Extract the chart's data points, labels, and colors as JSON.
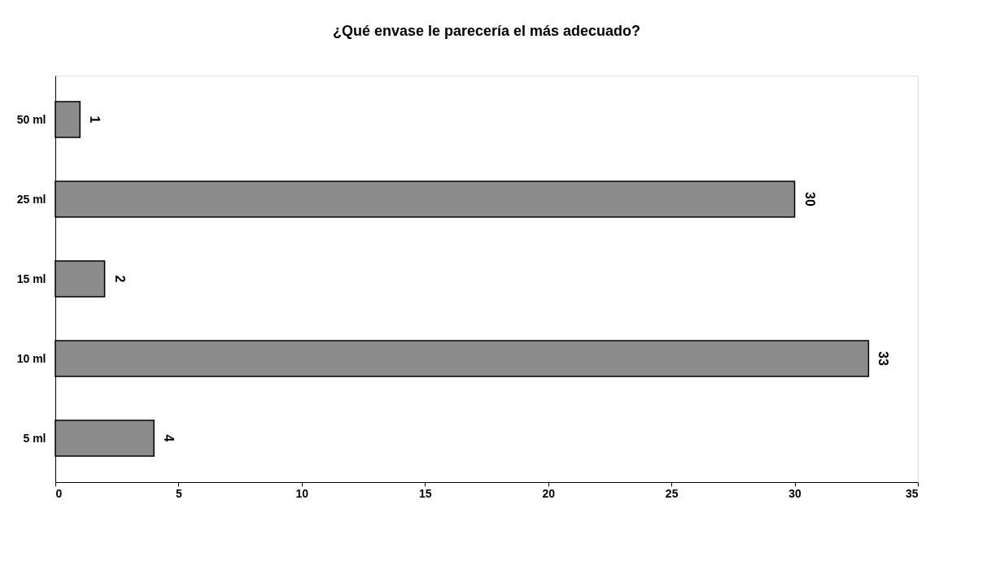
{
  "chart_data": {
    "type": "bar",
    "orientation": "horizontal",
    "title": "¿Qué envase le parecería el más adecuado?",
    "categories": [
      "50 ml",
      "25 ml",
      "15 ml",
      "10 ml",
      "5 ml"
    ],
    "values": [
      1,
      30,
      2,
      33,
      4
    ],
    "color": "#8c8c8c",
    "xlim": [
      0,
      35
    ],
    "xticks": [
      0,
      5,
      10,
      15,
      20,
      25,
      30,
      35
    ],
    "grid": false,
    "data_labels": true
  }
}
